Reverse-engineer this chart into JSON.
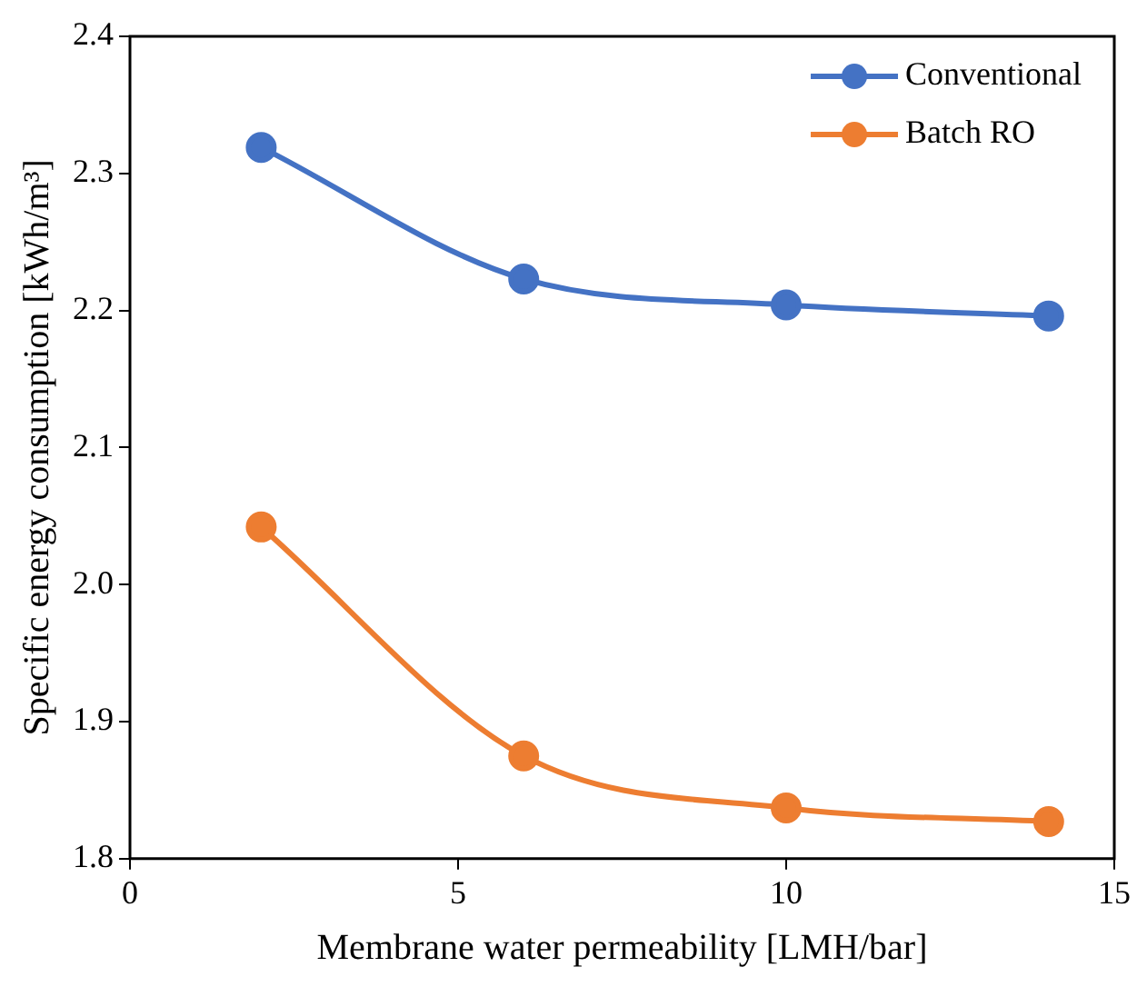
{
  "chart_data": {
    "type": "line",
    "xlabel": "Membrane water permeability [LMH/bar]",
    "ylabel": "Specific energy consumption [kWh/m³]",
    "x": [
      2,
      6,
      10,
      14
    ],
    "series": [
      {
        "name": "Conventional",
        "color": "#4472c4",
        "values": [
          2.319,
          2.223,
          2.204,
          2.196
        ]
      },
      {
        "name": "Batch RO",
        "color": "#ed7d31",
        "values": [
          2.042,
          1.875,
          1.837,
          1.827
        ]
      }
    ],
    "xlim": [
      0,
      15
    ],
    "xticks": [
      0,
      5,
      10,
      15
    ],
    "ylim": [
      1.8,
      2.4
    ],
    "yticks": [
      {
        "value": 1.8,
        "label": "1.8"
      },
      {
        "value": 1.9,
        "label": "1.9"
      },
      {
        "value": 2.0,
        "label": "2.0"
      },
      {
        "value": 2.1,
        "label": "2.1"
      },
      {
        "value": 2.2,
        "label": "2.2"
      },
      {
        "value": 2.3,
        "label": "2.3"
      },
      {
        "value": 2.4,
        "label": "2.4"
      }
    ],
    "legend": "top right",
    "marker": "circle",
    "line_style": "solid"
  }
}
